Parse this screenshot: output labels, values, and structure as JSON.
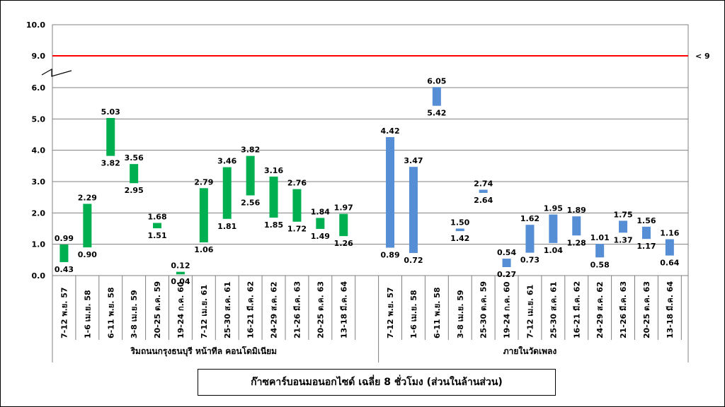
{
  "chart_data": {
    "type": "bar",
    "subtype": "floating-range",
    "title": "ก๊าซคาร์บอนมอนอกไซด์ เฉลี่ย 8 ชั่วโมง (ส่วนในล้านส่วน)",
    "ylim": [
      0,
      10
    ],
    "axis_break": true,
    "ytick_labels": [
      "0.0",
      "1.0",
      "2.0",
      "3.0",
      "4.0",
      "5.0",
      "6.0",
      "9.0",
      "10.0"
    ],
    "grid": true,
    "reference_line": {
      "value": 9.0,
      "label": "< 9",
      "color": "#ff0000"
    },
    "groups": [
      {
        "name": "ริมถนนกรุงธนบุรี หน้าทีล คอนโดมิเนียม",
        "color": "#00b050",
        "categories": [
          "7-12 พ.ย. 57",
          "1-6 เม.ย. 58",
          "6-11 พ.ย. 58",
          "3-8 เม.ย. 59",
          "20-25 ต.ค. 59",
          "19-24 ก.ค. 60",
          "7-12 เม.ย. 61",
          "25-30 ส.ค. 61",
          "16-21 มี.ค. 62",
          "24-29 ส.ค. 62",
          "21-26 มี.ค. 63",
          "20-25 ต.ค. 63",
          "13-18 มี.ค. 64"
        ],
        "max": [
          0.99,
          2.29,
          5.03,
          3.56,
          1.68,
          0.12,
          2.79,
          3.46,
          3.82,
          3.16,
          2.76,
          1.84,
          1.97
        ],
        "min": [
          0.43,
          0.9,
          3.82,
          2.95,
          1.51,
          0.04,
          1.06,
          1.81,
          2.56,
          1.85,
          1.72,
          1.49,
          1.26
        ],
        "max_labels": [
          "0.99",
          "2.29",
          "5.03",
          "3.56",
          "1.68",
          "0.12",
          "2.79",
          "3.46",
          "3.82",
          "3.16",
          "2.76",
          "1.84",
          "1.97"
        ],
        "min_labels": [
          "0.43",
          "0.90",
          "3.82",
          "2.95",
          "1.51",
          "0.04",
          "1.06",
          "1.81",
          "2.56",
          "1.85",
          "1.72",
          "1.49",
          "1.26"
        ]
      },
      {
        "name": "ภายในวัดเพลง",
        "color": "#558ed5",
        "categories": [
          "7-12 พ.ย. 57",
          "1-6 เม.ย. 58",
          "6-11 พ.ย. 58",
          "3-8 เม.ย. 59",
          "25-30 ต.ค. 59",
          "19-24 ก.ค. 60",
          "7-12 เม.ย. 61",
          "25-30 ส.ค. 61",
          "16-21 มี.ค. 62",
          "24-29 ส.ค. 62",
          "21-26 มี.ค. 63",
          "20-25 ต.ค. 63",
          "13-18 มี.ค. 64"
        ],
        "max": [
          4.42,
          3.47,
          6.05,
          1.5,
          2.74,
          0.54,
          1.62,
          1.95,
          1.89,
          1.01,
          1.75,
          1.56,
          1.16
        ],
        "min": [
          0.89,
          0.72,
          5.42,
          1.42,
          2.64,
          0.27,
          0.73,
          1.04,
          1.28,
          0.58,
          1.37,
          1.17,
          0.64
        ],
        "max_labels": [
          "4.42",
          "3.47",
          "6.05",
          "1.50",
          "2.74",
          "0.54",
          "1.62",
          "1.95",
          "1.89",
          "1.01",
          "1.75",
          "1.56",
          "1.16"
        ],
        "min_labels": [
          "0.89",
          "0.72",
          "5.42",
          "1.42",
          "2.64",
          "0.27",
          "0.73",
          "1.04",
          "1.28",
          "0.58",
          "1.37",
          "1.17",
          "0.64"
        ]
      }
    ]
  }
}
